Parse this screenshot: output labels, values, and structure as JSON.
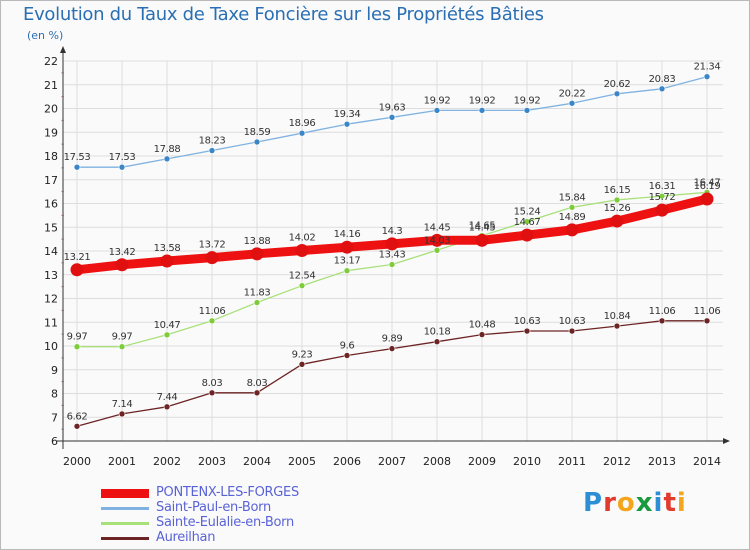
{
  "header": {
    "title": "Evolution du Taux de Taxe Foncière sur les Propriétés Bâties",
    "unit": "(en %)"
  },
  "logo": {
    "text": "Proxiti",
    "letters": [
      {
        "ch": "P",
        "color": "#2c8fd6"
      },
      {
        "ch": "r",
        "color": "#e23b2e"
      },
      {
        "ch": "o",
        "color": "#f3a51c"
      },
      {
        "ch": "x",
        "color": "#1a9a3f"
      },
      {
        "ch": "i",
        "color": "#2c8fd6"
      },
      {
        "ch": "t",
        "color": "#e23b2e"
      },
      {
        "ch": "i",
        "color": "#f3a51c"
      }
    ]
  },
  "chart_data": {
    "type": "line",
    "title": "Evolution du Taux de Taxe Foncière sur les Propriétés Bâties",
    "ylabel": "(en %)",
    "xlabel": "",
    "x": [
      2000,
      2001,
      2002,
      2003,
      2004,
      2005,
      2006,
      2007,
      2008,
      2009,
      2010,
      2011,
      2012,
      2013,
      2014
    ],
    "ylim": [
      6,
      22
    ],
    "yticks": [
      6,
      7,
      8,
      9,
      10,
      11,
      12,
      13,
      14,
      15,
      16,
      17,
      18,
      19,
      20,
      21,
      22
    ],
    "grid": true,
    "legend_position": "bottom-left",
    "series": [
      {
        "name": "PONTENX-LES-FORGES",
        "color": "#ee1111",
        "emphasis": true,
        "values": [
          13.21,
          13.42,
          13.58,
          13.72,
          13.88,
          14.02,
          14.16,
          14.3,
          14.45,
          14.45,
          14.67,
          14.89,
          15.26,
          15.72,
          16.19
        ]
      },
      {
        "name": "Saint-Paul-en-Born",
        "color": "#7fb2e0",
        "marker": "#3b86c7",
        "values": [
          17.53,
          17.53,
          17.88,
          18.23,
          18.59,
          18.96,
          19.34,
          19.63,
          19.92,
          19.92,
          19.92,
          20.22,
          20.62,
          20.83,
          21.34
        ]
      },
      {
        "name": "Sainte-Eulalie-en-Born",
        "color": "#a8e07a",
        "marker": "#7ecb3c",
        "values": [
          9.97,
          9.97,
          10.47,
          11.06,
          11.83,
          12.54,
          13.17,
          13.43,
          14.03,
          14.65,
          15.24,
          15.84,
          16.15,
          16.31,
          16.47
        ]
      },
      {
        "name": "Aureilhan",
        "color": "#6d2424",
        "marker": "#6d2424",
        "values": [
          6.62,
          7.14,
          7.44,
          8.03,
          8.03,
          9.23,
          9.6,
          9.89,
          10.18,
          10.48,
          10.63,
          10.63,
          10.84,
          11.06,
          11.06
        ]
      }
    ],
    "data_labels": [
      [
        "13.21",
        "13.42",
        "13.58",
        "13.72",
        "13.88",
        "14.02",
        "14.16",
        "14.3",
        "14.45",
        "14.45",
        "14.67",
        "14.89",
        "15.26",
        "15.72",
        "16.19"
      ],
      [
        "17.53",
        "17.53",
        "17.88",
        "18.23",
        "18.59",
        "18.96",
        "19.34",
        "19.63",
        "19.92",
        "19.92",
        "19.92",
        "20.22",
        "20.62",
        "20.83",
        "21.34"
      ],
      [
        "9.97",
        "9.97",
        "10.47",
        "11.06",
        "11.83",
        "12.54",
        "13.17",
        "13.43",
        "14.03",
        "14.65",
        "15.24",
        "15.84",
        "16.15",
        "16.31",
        "16.47"
      ],
      [
        "6.62",
        "7.14",
        "7.44",
        "8.03",
        "8.03",
        "9.23",
        "9.6",
        "9.89",
        "10.18",
        "10.48",
        "10.63",
        "10.63",
        "10.84",
        "11.06",
        "11.06"
      ]
    ]
  }
}
